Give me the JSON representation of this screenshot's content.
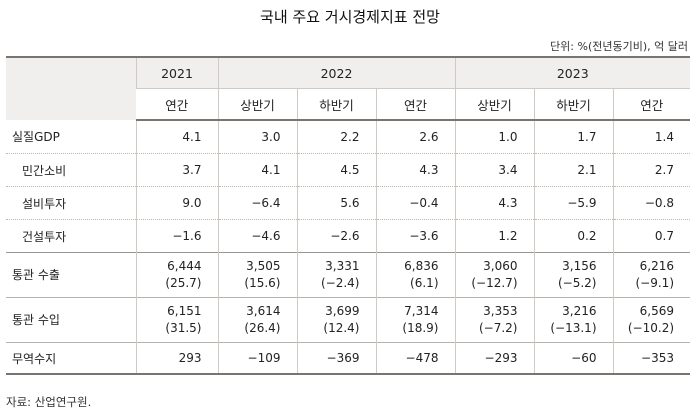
{
  "title": "국내 주요 거시경제지표 전망",
  "unit": "단위: %(전년동기비), 억 달러",
  "header": {
    "years": [
      "2021",
      "2022",
      "2023"
    ],
    "periods": [
      "연간",
      "상반기",
      "하반기",
      "연간",
      "상반기",
      "하반기",
      "연간"
    ]
  },
  "rows": [
    {
      "label": "실질GDP",
      "values": [
        "4.1",
        "3.0",
        "2.2",
        "2.6",
        "1.0",
        "1.7",
        "1.4"
      ]
    },
    {
      "label": "민간소비",
      "values": [
        "3.7",
        "4.1",
        "4.5",
        "4.3",
        "3.4",
        "2.1",
        "2.7"
      ]
    },
    {
      "label": "설비투자",
      "values": [
        "9.0",
        "−6.4",
        "5.6",
        "−0.4",
        "4.3",
        "−5.9",
        "−0.8"
      ]
    },
    {
      "label": "건설투자",
      "values": [
        "−1.6",
        "−4.6",
        "−2.6",
        "−3.6",
        "1.2",
        "0.2",
        "0.7"
      ]
    },
    {
      "label": "통관 수출",
      "values": [
        "6,444",
        "3,505",
        "3,331",
        "6,836",
        "3,060",
        "3,156",
        "6,216"
      ],
      "sub": [
        "(25.7)",
        "(15.6)",
        "(−2.4)",
        "(6.1)",
        "(−12.7)",
        "(−5.2)",
        "(−9.1)"
      ]
    },
    {
      "label": "통관 수입",
      "values": [
        "6,151",
        "3,614",
        "3,699",
        "7,314",
        "3,353",
        "3,216",
        "6,569"
      ],
      "sub": [
        "(31.5)",
        "(26.4)",
        "(12.4)",
        "(18.9)",
        "(−7.2)",
        "(−13.1)",
        "(−10.2)"
      ]
    },
    {
      "label": "무역수지",
      "values": [
        "293",
        "−109",
        "−369",
        "−478",
        "−293",
        "−60",
        "−353"
      ]
    }
  ],
  "source": "자료: 산업연구원."
}
